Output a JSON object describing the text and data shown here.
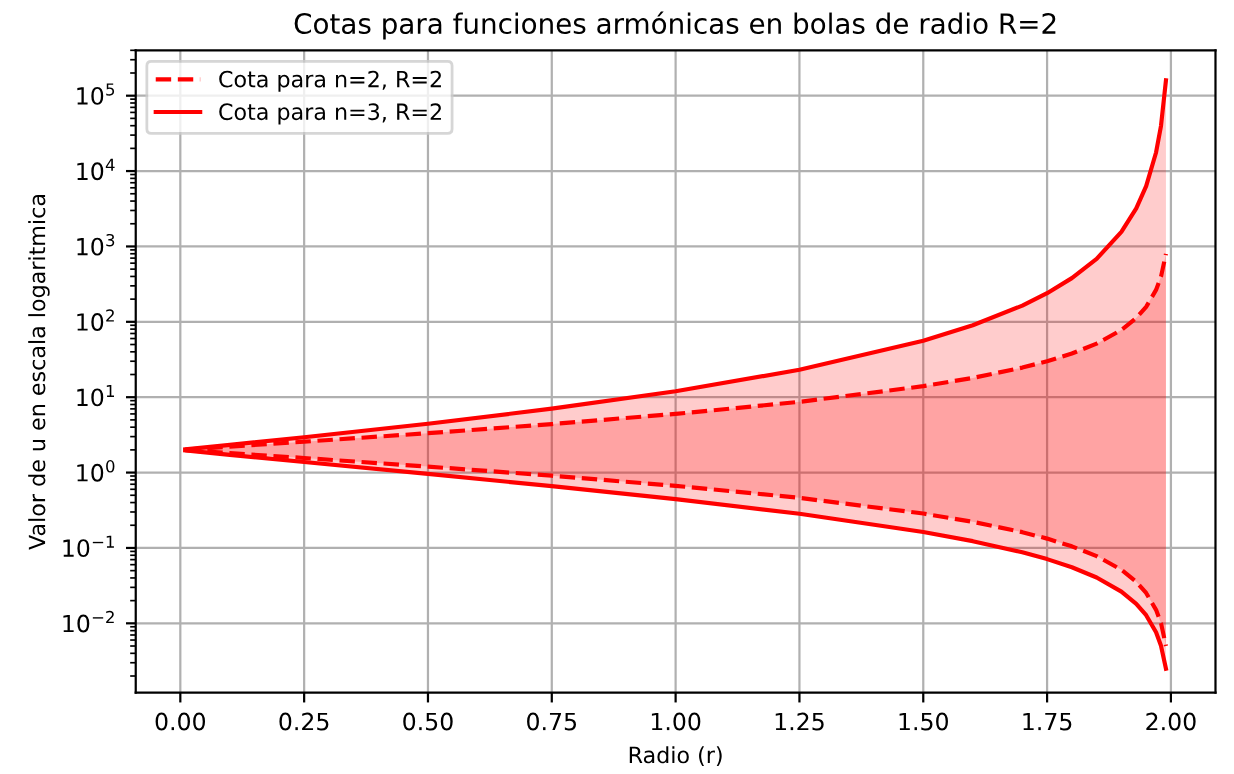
{
  "chart_data": {
    "type": "line",
    "title": "Cotas para funciones armónicas en bolas de radio R=2",
    "xlabel": "Radio (r)",
    "ylabel": "Valor de u en escala logaritmica",
    "x": [
      0.01,
      0.1,
      0.25,
      0.5,
      0.75,
      1.0,
      1.25,
      1.5,
      1.6,
      1.7,
      1.75,
      1.8,
      1.85,
      1.9,
      1.93,
      1.95,
      1.97,
      1.98,
      1.99
    ],
    "series": [
      {
        "name": "Cota para n=2, R=2",
        "color": "#ff0000",
        "line_style": "dashed",
        "values": [
          2.02,
          2.21,
          2.57,
          3.33,
          4.4,
          6,
          8.67,
          14,
          18,
          24.7,
          30,
          38,
          51.3,
          78,
          112,
          158,
          265,
          398,
          798
        ],
        "lower": [
          1.98,
          1.81,
          1.56,
          1.2,
          0.909,
          0.667,
          0.462,
          0.286,
          0.222,
          0.162,
          0.133,
          0.105,
          0.078,
          0.0513,
          0.0356,
          0.0253,
          0.0151,
          0.01005,
          0.00501
        ],
        "upper": [
          2.02,
          2.21,
          2.57,
          3.33,
          4.4,
          6,
          8.67,
          14,
          18,
          24.7,
          30,
          38,
          51.3,
          78,
          112,
          158,
          265,
          398,
          798
        ]
      },
      {
        "color": "#ff0000",
        "line_style": "dashed",
        "values": [
          1.98,
          1.81,
          1.56,
          1.2,
          0.909,
          0.667,
          0.462,
          0.286,
          0.222,
          0.162,
          0.133,
          0.105,
          0.078,
          0.0513,
          0.0356,
          0.0253,
          0.0151,
          0.01005,
          0.00501
        ]
      },
      {
        "name": "Cota para n=3, R=2",
        "color": "#ff0000",
        "line_style": "solid",
        "values": [
          2.03,
          2.33,
          2.94,
          4.44,
          7.04,
          12,
          23.1,
          56,
          90,
          164,
          240,
          380,
          684,
          1560,
          3208,
          6320,
          17644,
          39800,
          159600
        ],
        "lower": [
          1.97,
          1.72,
          1.38,
          0.96,
          0.661,
          0.444,
          0.284,
          0.163,
          0.123,
          0.0877,
          0.0711,
          0.0554,
          0.0405,
          0.0263,
          0.0181,
          0.0128,
          0.0076,
          0.00503,
          0.0025
        ],
        "upper": [
          2.03,
          2.33,
          2.94,
          4.44,
          7.04,
          12,
          23.1,
          56,
          90,
          164,
          240,
          380,
          684,
          1560,
          3208,
          6320,
          17644,
          39800,
          159600
        ]
      },
      {
        "color": "#ff0000",
        "line_style": "solid",
        "values": [
          1.97,
          1.72,
          1.38,
          0.96,
          0.661,
          0.444,
          0.284,
          0.163,
          0.123,
          0.0877,
          0.0711,
          0.0554,
          0.0405,
          0.0263,
          0.0181,
          0.0128,
          0.0076,
          0.00503,
          0.0025
        ]
      }
    ],
    "log": "y",
    "grid": true,
    "legend": "top left",
    "marker": "none",
    "xlim": [
      -0.09,
      2.09
    ],
    "xticks": [
      {
        "value": 0,
        "label": "0.00"
      },
      {
        "value": 0.25,
        "label": "0.25"
      },
      {
        "value": 0.5,
        "label": "0.50"
      },
      {
        "value": 0.75,
        "label": "0.75"
      },
      {
        "value": 1,
        "label": "1.00"
      },
      {
        "value": 1.25,
        "label": "1.25"
      },
      {
        "value": 1.5,
        "label": "1.50"
      },
      {
        "value": 1.75,
        "label": "1.75"
      },
      {
        "value": 2,
        "label": "2.00"
      }
    ],
    "ylim": [
      0.0012,
      400000
    ],
    "yticks": [
      {
        "value": 0.01,
        "label": "10$^{−2}$"
      },
      {
        "value": 0.1,
        "label": "10$^{−1}$"
      },
      {
        "value": 1,
        "label": "10$^{0}$"
      },
      {
        "value": 10,
        "label": "10$^{1}$"
      },
      {
        "value": 100,
        "label": "10$^{2}$"
      },
      {
        "value": 1000,
        "label": "10$^{3}$"
      },
      {
        "value": 10000,
        "label": "10$^{4}$"
      },
      {
        "value": 100000,
        "label": "10$^{5}$"
      }
    ]
  }
}
